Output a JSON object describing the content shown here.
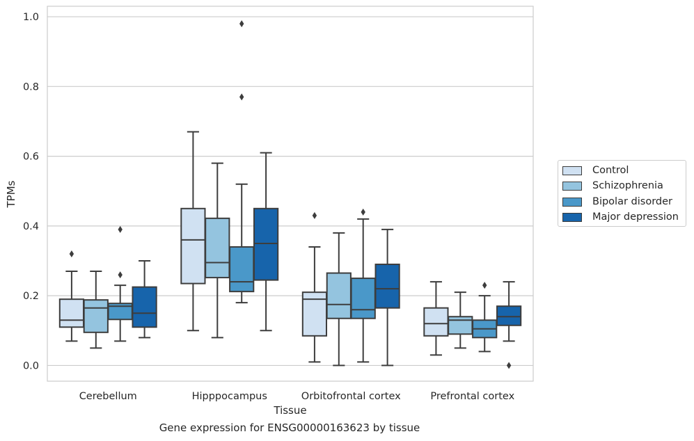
{
  "chart_data": {
    "type": "box",
    "title": "",
    "xlabel": "Tissue",
    "ylabel": "TPMs",
    "ylim": [
      -0.045,
      1.03
    ],
    "yticks": [
      "0.0",
      "0.2",
      "0.4",
      "0.6",
      "0.8",
      "1.0"
    ],
    "grid": true,
    "legend_position": "right",
    "categories": [
      "Cerebellum",
      "Hipppocampus",
      "Orbitofrontal cortex",
      "Prefrontal cortex"
    ],
    "series": [
      {
        "name": "Control",
        "color": "#d0e1f2",
        "boxes": [
          {
            "whislo": 0.07,
            "q1": 0.11,
            "med": 0.13,
            "q3": 0.19,
            "whishi": 0.27,
            "fliers": [
              0.32
            ]
          },
          {
            "whislo": 0.1,
            "q1": 0.235,
            "med": 0.36,
            "q3": 0.45,
            "whishi": 0.67,
            "fliers": []
          },
          {
            "whislo": 0.01,
            "q1": 0.085,
            "med": 0.19,
            "q3": 0.21,
            "whishi": 0.34,
            "fliers": [
              0.43
            ]
          },
          {
            "whislo": 0.03,
            "q1": 0.085,
            "med": 0.12,
            "q3": 0.165,
            "whishi": 0.24,
            "fliers": []
          }
        ]
      },
      {
        "name": "Schizophrenia",
        "color": "#94c4df",
        "boxes": [
          {
            "whislo": 0.05,
            "q1": 0.095,
            "med": 0.165,
            "q3": 0.188,
            "whishi": 0.27,
            "fliers": []
          },
          {
            "whislo": 0.08,
            "q1": 0.252,
            "med": 0.295,
            "q3": 0.422,
            "whishi": 0.58,
            "fliers": []
          },
          {
            "whislo": 0.0,
            "q1": 0.135,
            "med": 0.175,
            "q3": 0.265,
            "whishi": 0.38,
            "fliers": []
          },
          {
            "whislo": 0.05,
            "q1": 0.09,
            "med": 0.13,
            "q3": 0.14,
            "whishi": 0.21,
            "fliers": []
          }
        ]
      },
      {
        "name": "Bipolar disorder",
        "color": "#4a98c9",
        "boxes": [
          {
            "whislo": 0.07,
            "q1": 0.132,
            "med": 0.17,
            "q3": 0.178,
            "whishi": 0.23,
            "fliers": [
              0.26,
              0.39
            ]
          },
          {
            "whislo": 0.18,
            "q1": 0.212,
            "med": 0.24,
            "q3": 0.34,
            "whishi": 0.52,
            "fliers": [
              0.77,
              0.98
            ]
          },
          {
            "whislo": 0.01,
            "q1": 0.135,
            "med": 0.16,
            "q3": 0.25,
            "whishi": 0.42,
            "fliers": [
              0.44
            ]
          },
          {
            "whislo": 0.04,
            "q1": 0.08,
            "med": 0.105,
            "q3": 0.13,
            "whishi": 0.2,
            "fliers": [
              0.23
            ]
          }
        ]
      },
      {
        "name": "Major depression",
        "color": "#1764ab",
        "boxes": [
          {
            "whislo": 0.08,
            "q1": 0.11,
            "med": 0.15,
            "q3": 0.225,
            "whishi": 0.3,
            "fliers": []
          },
          {
            "whislo": 0.1,
            "q1": 0.245,
            "med": 0.35,
            "q3": 0.45,
            "whishi": 0.61,
            "fliers": []
          },
          {
            "whislo": 0.0,
            "q1": 0.165,
            "med": 0.22,
            "q3": 0.29,
            "whishi": 0.39,
            "fliers": []
          },
          {
            "whislo": 0.07,
            "q1": 0.115,
            "med": 0.14,
            "q3": 0.17,
            "whishi": 0.24,
            "fliers": [
              0.0
            ]
          }
        ]
      }
    ]
  },
  "caption": "Gene expression for ENSG00000163623 by tissue"
}
